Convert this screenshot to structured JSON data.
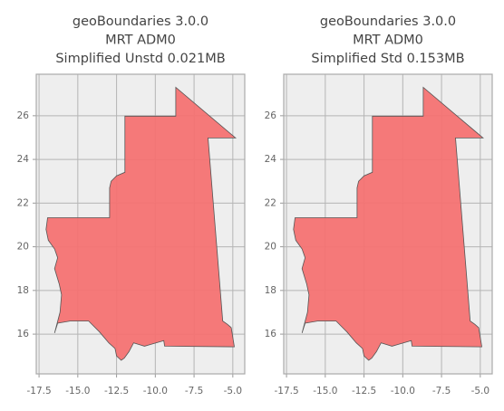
{
  "chart_data": [
    {
      "type": "map",
      "title": [
        "geoBoundaries 3.0.0",
        "MRT ADM0",
        "Simplified Unstd 0.021MB"
      ],
      "x": [
        -16.95,
        -12.95,
        -12.95,
        -12.85,
        -12.5,
        -11.96,
        -11.96,
        -8.68,
        -8.68,
        -4.82,
        -6.6,
        -5.65,
        -5.35,
        -5.1,
        -4.9,
        -9.4,
        -9.45,
        -10.7,
        -11.4,
        -11.7,
        -12.0,
        -12.2,
        -12.5,
        -12.6,
        -13.0,
        -13.6,
        -14.3,
        -15.5,
        -16.3,
        -16.5,
        -16.15,
        -16.05,
        -16.2,
        -16.5,
        -16.3,
        -16.5,
        -16.9,
        -17.05
      ],
      "y": [
        21.33,
        21.33,
        22.7,
        23.0,
        23.25,
        23.41,
        25.98,
        25.98,
        27.3,
        24.98,
        24.98,
        16.6,
        16.45,
        16.3,
        15.42,
        15.45,
        15.7,
        15.45,
        15.6,
        15.2,
        14.9,
        14.8,
        15.0,
        15.34,
        15.6,
        16.1,
        16.6,
        16.6,
        16.5,
        16.05,
        17.0,
        17.8,
        18.3,
        19.0,
        19.5,
        19.9,
        20.3,
        20.8
      ],
      "color": "#f47272",
      "xlim": [
        -17.68,
        -4.23
      ],
      "ylim": [
        14.18,
        27.9
      ],
      "xticks": [
        -17.5,
        {
          "value": -15,
          "label": "-15.0"
        },
        -12.5,
        {
          "value": -10,
          "label": "-10.0"
        },
        -7.5,
        {
          "value": -5,
          "label": "-5.0"
        }
      ],
      "yticks": [
        16,
        18,
        20,
        22,
        24,
        26
      ],
      "grid": true
    },
    {
      "type": "map",
      "title": [
        "geoBoundaries 3.0.0",
        "MRT ADM0",
        "Simplified Std 0.153MB"
      ],
      "x": [
        -16.95,
        -12.95,
        -12.95,
        -12.85,
        -12.5,
        -11.96,
        -11.96,
        -8.68,
        -8.68,
        -4.82,
        -6.6,
        -5.65,
        -5.35,
        -5.1,
        -4.9,
        -9.4,
        -9.45,
        -10.7,
        -11.4,
        -11.7,
        -12.0,
        -12.2,
        -12.5,
        -12.6,
        -13.0,
        -13.6,
        -14.3,
        -15.5,
        -16.3,
        -16.5,
        -16.15,
        -16.05,
        -16.2,
        -16.5,
        -16.3,
        -16.5,
        -16.9,
        -17.05
      ],
      "y": [
        21.33,
        21.33,
        22.7,
        23.0,
        23.25,
        23.41,
        25.98,
        25.98,
        27.3,
        24.98,
        24.98,
        16.6,
        16.45,
        16.3,
        15.42,
        15.45,
        15.7,
        15.45,
        15.6,
        15.2,
        14.9,
        14.8,
        15.0,
        15.34,
        15.6,
        16.1,
        16.6,
        16.6,
        16.5,
        16.05,
        17.0,
        17.8,
        18.3,
        19.0,
        19.5,
        19.9,
        20.3,
        20.8
      ],
      "color": "#f47272",
      "xlim": [
        -17.68,
        -4.23
      ],
      "ylim": [
        14.18,
        27.9
      ],
      "xticks": [
        -17.5,
        {
          "value": -15,
          "label": "-15.0"
        },
        -12.5,
        {
          "value": -10,
          "label": "-10.0"
        },
        -7.5,
        {
          "value": -5,
          "label": "-5.0"
        }
      ],
      "yticks": [
        16,
        18,
        20,
        22,
        24,
        26
      ],
      "grid": true
    }
  ]
}
